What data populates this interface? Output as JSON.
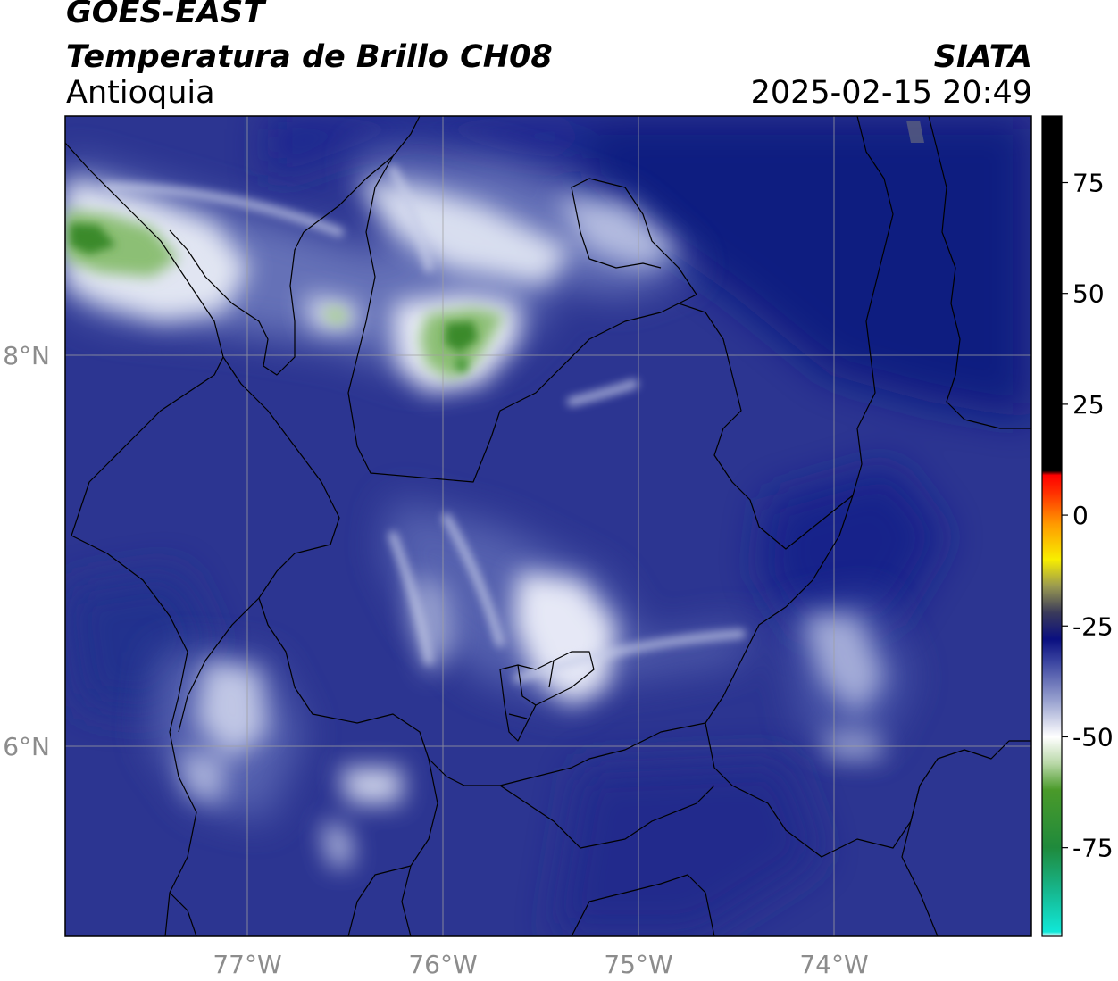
{
  "header": {
    "satellite": "GOES-EAST",
    "product": "Temperatura de Brillo CH08",
    "region": "Antioquia",
    "organization": "SIATA",
    "datetime": "2025-02-15 20:49"
  },
  "map": {
    "lon_ticks": [
      "77°W",
      "76°W",
      "75°W",
      "74°W"
    ],
    "lat_ticks": [
      "8°N",
      "6°N"
    ],
    "lon_range": [
      -77.93,
      -72.97
    ],
    "lat_range": [
      5.05,
      9.25
    ],
    "colors": {
      "background_field": "#2c3591",
      "dark_field": "#0c1a80",
      "cloud_light": "#e8ecf6",
      "cloud_mid": "#9aa3d0",
      "cold_green": "#3b8a2a",
      "border_line": "#000000",
      "gridline": "#a0a0a0"
    }
  },
  "colorbar": {
    "labels": [
      "75",
      "50",
      "25",
      "0",
      "-25",
      "-50",
      "-75"
    ],
    "range": [
      -95,
      90
    ],
    "stops": [
      {
        "value": -95,
        "color": "#ffffff"
      },
      {
        "value": -94,
        "color": "#10e8d8"
      },
      {
        "value": -85,
        "color": "#16b890"
      },
      {
        "value": -75,
        "color": "#1f8a3c"
      },
      {
        "value": -62,
        "color": "#4a9a2a"
      },
      {
        "value": -56,
        "color": "#b9d8a8"
      },
      {
        "value": -50,
        "color": "#ffffff"
      },
      {
        "value": -42,
        "color": "#9aa3d0"
      },
      {
        "value": -33,
        "color": "#3a44a0"
      },
      {
        "value": -28,
        "color": "#0a0f80"
      },
      {
        "value": -22,
        "color": "#3a3a5a"
      },
      {
        "value": -16,
        "color": "#9a9a50"
      },
      {
        "value": -10,
        "color": "#f8ee00"
      },
      {
        "value": -2,
        "color": "#ff9a00"
      },
      {
        "value": 5,
        "color": "#ff3000"
      },
      {
        "value": 9,
        "color": "#ff0000"
      },
      {
        "value": 10,
        "color": "#000000"
      },
      {
        "value": 90,
        "color": "#000000"
      }
    ]
  }
}
